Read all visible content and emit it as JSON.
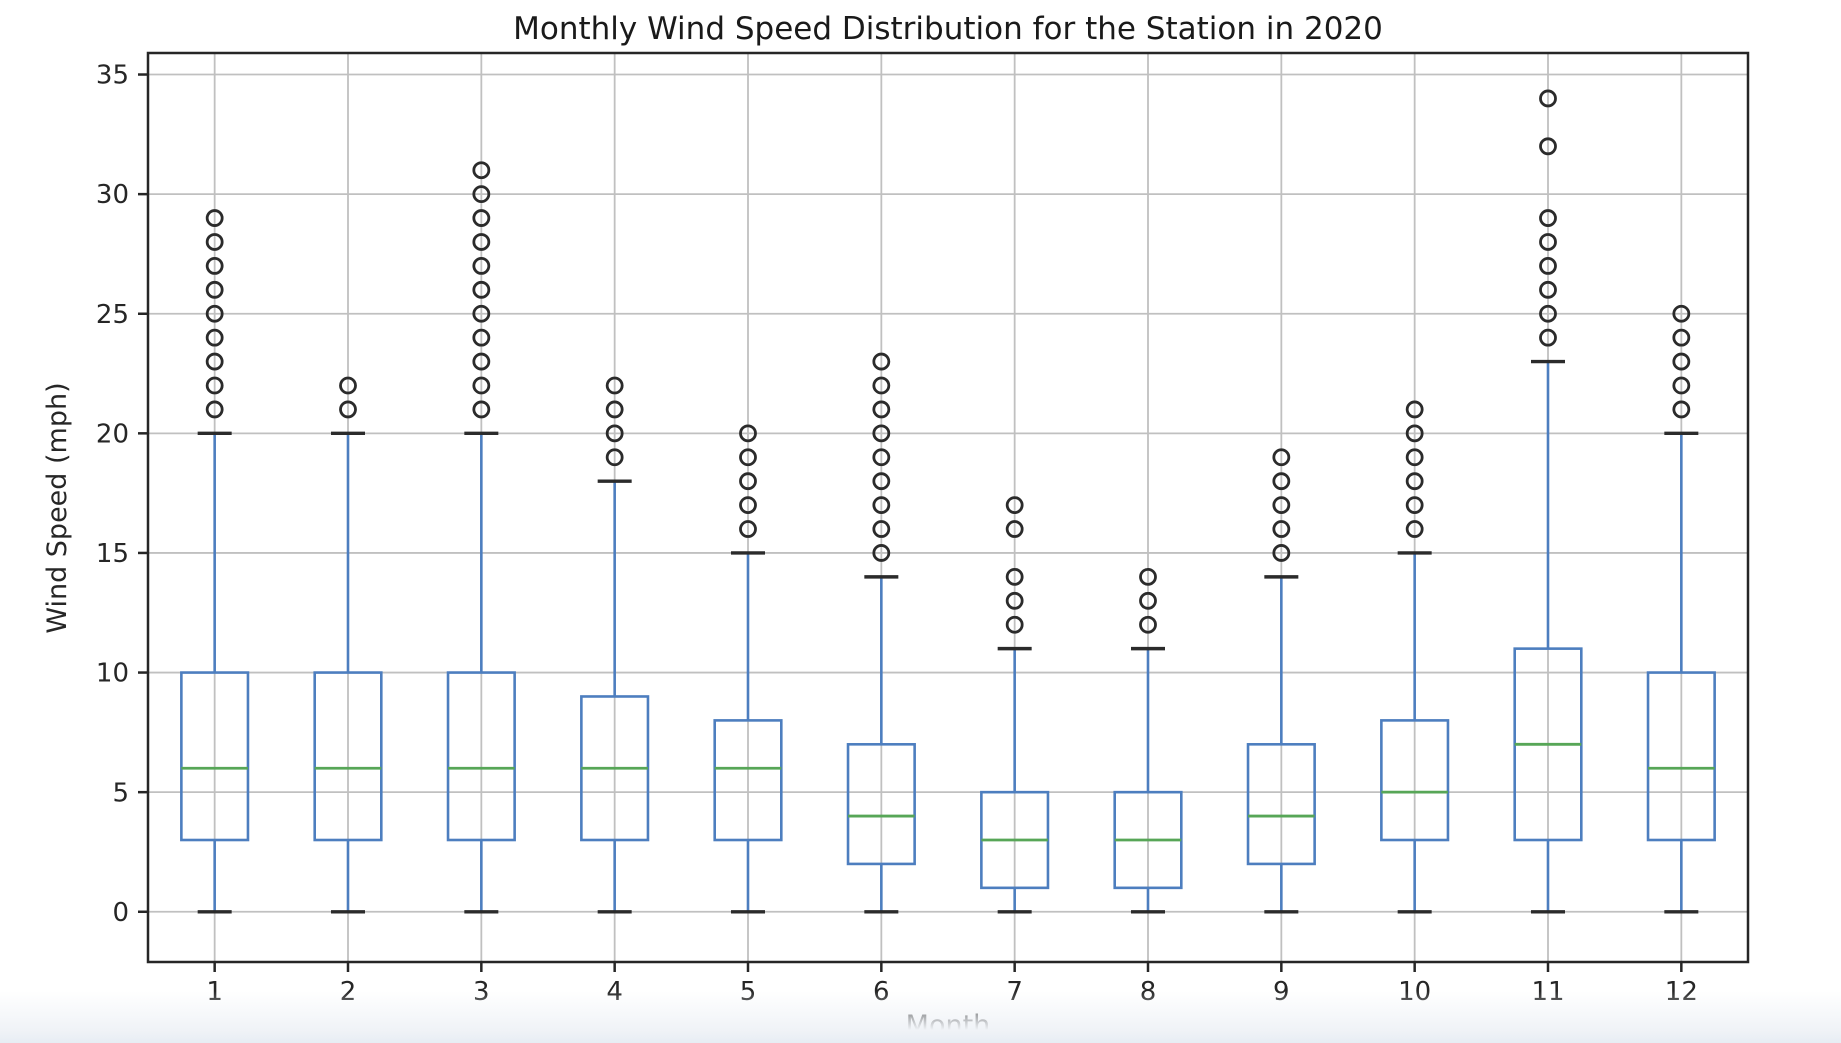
{
  "chart_data": {
    "type": "box",
    "title": "Monthly Wind Speed Distribution for the Station in 2020",
    "xlabel": "Month",
    "ylabel": "Wind Speed (mph)",
    "categories": [
      "1",
      "2",
      "3",
      "4",
      "5",
      "6",
      "7",
      "8",
      "9",
      "10",
      "11",
      "12"
    ],
    "yticks": [
      0,
      5,
      10,
      15,
      20,
      25,
      30,
      35
    ],
    "ylim": [
      -2.1,
      35.9
    ],
    "xlim": [
      0.5,
      12.5
    ],
    "grid": true,
    "legend_position": "none",
    "boxes": [
      {
        "month": 1,
        "label": "1",
        "whislo": 0,
        "q1": 3,
        "med": 6,
        "q3": 10,
        "whishi": 20,
        "fliers": [
          21,
          22,
          23,
          24,
          25,
          26,
          27,
          28,
          29
        ]
      },
      {
        "month": 2,
        "label": "2",
        "whislo": 0,
        "q1": 3,
        "med": 6,
        "q3": 10,
        "whishi": 20,
        "fliers": [
          21,
          22
        ]
      },
      {
        "month": 3,
        "label": "3",
        "whislo": 0,
        "q1": 3,
        "med": 6,
        "q3": 10,
        "whishi": 20,
        "fliers": [
          21,
          22,
          23,
          24,
          25,
          26,
          27,
          28,
          29,
          30,
          31
        ]
      },
      {
        "month": 4,
        "label": "4",
        "whislo": 0,
        "q1": 3,
        "med": 6,
        "q3": 9,
        "whishi": 18,
        "fliers": [
          19,
          20,
          21,
          22
        ]
      },
      {
        "month": 5,
        "label": "5",
        "whislo": 0,
        "q1": 3,
        "med": 6,
        "q3": 8,
        "whishi": 15,
        "fliers": [
          16,
          17,
          18,
          19,
          20
        ]
      },
      {
        "month": 6,
        "label": "6",
        "whislo": 0,
        "q1": 2,
        "med": 4,
        "q3": 7,
        "whishi": 14,
        "fliers": [
          15,
          16,
          17,
          18,
          19,
          20,
          21,
          22,
          23
        ]
      },
      {
        "month": 7,
        "label": "7",
        "whislo": 0,
        "q1": 1,
        "med": 3,
        "q3": 5,
        "whishi": 11,
        "fliers": [
          12,
          13,
          14,
          16,
          17
        ]
      },
      {
        "month": 8,
        "label": "8",
        "whislo": 0,
        "q1": 1,
        "med": 3,
        "q3": 5,
        "whishi": 11,
        "fliers": [
          12,
          13,
          14
        ]
      },
      {
        "month": 9,
        "label": "9",
        "whislo": 0,
        "q1": 2,
        "med": 4,
        "q3": 7,
        "whishi": 14,
        "fliers": [
          15,
          16,
          17,
          18,
          19
        ]
      },
      {
        "month": 10,
        "label": "10",
        "whislo": 0,
        "q1": 3,
        "med": 5,
        "q3": 8,
        "whishi": 15,
        "fliers": [
          16,
          17,
          18,
          19,
          20,
          21
        ]
      },
      {
        "month": 11,
        "label": "11",
        "whislo": 0,
        "q1": 3,
        "med": 7,
        "q3": 11,
        "whishi": 23,
        "fliers": [
          24,
          25,
          26,
          27,
          28,
          29,
          32,
          34
        ]
      },
      {
        "month": 12,
        "label": "12",
        "whislo": 0,
        "q1": 3,
        "med": 6,
        "q3": 10,
        "whishi": 20,
        "fliers": [
          21,
          22,
          23,
          24,
          25
        ]
      }
    ],
    "colors": {
      "box": "#4d7ebf",
      "whisker": "#4d7ebf",
      "median": "#57a657",
      "cap": "#2b2b2b",
      "flier": "#2b2b2b",
      "grid": "#c0c0c0",
      "spine": "#262626",
      "text": "#262626",
      "background": "#ffffff"
    }
  }
}
